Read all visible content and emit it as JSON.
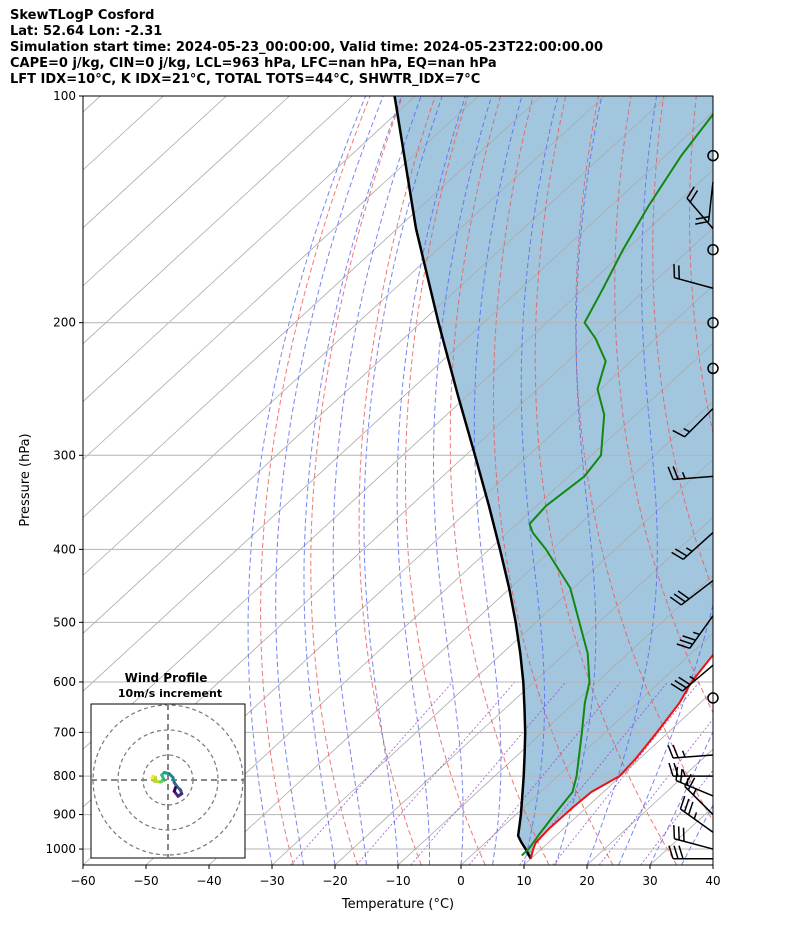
{
  "header": {
    "line1": "SkewTLogP Cosford",
    "line2": "Lat: 52.64   Lon: -2.31",
    "line3": "Simulation start time: 2024-05-23_00:00:00, Valid time: 2024-05-23T22:00:00.00",
    "line4": "CAPE=0 j/kg, CIN=0 j/kg, LCL=963 hPa, LFC=nan hPa, EQ=nan hPa",
    "line5": "LFT IDX=10°C, K IDX=21°C, TOTAL TOTS=44°C, SHWTR_IDX=7°C"
  },
  "colors": {
    "temperature": "#ee1111",
    "dewpoint": "#118811",
    "parcel": "#000000",
    "cape_fill": "#a3c6df",
    "dry_adiabat": "#ee5555",
    "moist_adiabat": "#5566ee",
    "mixing_ratio": "#9944cc",
    "isotherm": "#aaaaaa",
    "wind_barb": "#000000"
  },
  "chart_data": {
    "type": "skewt-logp",
    "xlabel": "Temperature (°C)",
    "ylabel": "Pressure (hPa)",
    "xlim": [
      -60,
      40
    ],
    "ylim": [
      1050,
      100
    ],
    "x_ticks": [
      -60,
      -50,
      -40,
      -30,
      -20,
      -10,
      0,
      10,
      20,
      30,
      40
    ],
    "x_tick_labels": [
      "−60",
      "−50",
      "−40",
      "−30",
      "−20",
      "−10",
      "0",
      "10",
      "20",
      "30",
      "40"
    ],
    "y_ticks": [
      100,
      200,
      300,
      400,
      500,
      600,
      700,
      800,
      900,
      1000
    ],
    "y_tick_labels": [
      "100",
      "200",
      "300",
      "400",
      "500",
      "600",
      "700",
      "800",
      "900",
      "1000"
    ],
    "grid": true,
    "skew_deg_per_decade": 130,
    "series": [
      {
        "type": "temperature",
        "points": [
          [
            1030,
            10.0
          ],
          [
            1000,
            8.7
          ],
          [
            980,
            8.0
          ],
          [
            940,
            7.7
          ],
          [
            880,
            7.8
          ],
          [
            840,
            8.1
          ],
          [
            800,
            9.8
          ],
          [
            760,
            9.4
          ],
          [
            700,
            8.2
          ],
          [
            640,
            6.7
          ],
          [
            600,
            5.0
          ],
          [
            540,
            3.4
          ],
          [
            500,
            1.7
          ],
          [
            450,
            -0.3
          ],
          [
            400,
            -3.8
          ],
          [
            350,
            -8.3
          ],
          [
            300,
            -12.3
          ],
          [
            290,
            -14.0
          ],
          [
            270,
            -14.3
          ],
          [
            250,
            -12.0
          ],
          [
            230,
            -8.5
          ],
          [
            210,
            -5.5
          ],
          [
            190,
            -3.0
          ],
          [
            170,
            -1.5
          ],
          [
            150,
            -2.0
          ],
          [
            130,
            -3.5
          ],
          [
            115,
            -6.5
          ],
          [
            100,
            -10.5
          ]
        ]
      },
      {
        "type": "dewpoint",
        "points": [
          [
            1020,
            8.0
          ],
          [
            1000,
            8.0
          ],
          [
            960,
            7.2
          ],
          [
            900,
            6.1
          ],
          [
            840,
            5.1
          ],
          [
            800,
            3.0
          ],
          [
            700,
            -3.7
          ],
          [
            640,
            -8.3
          ],
          [
            600,
            -11.2
          ],
          [
            550,
            -16.4
          ],
          [
            500,
            -23.1
          ],
          [
            450,
            -30.5
          ],
          [
            400,
            -41.0
          ],
          [
            380,
            -46.0
          ],
          [
            370,
            -48.0
          ],
          [
            350,
            -48.5
          ],
          [
            320,
            -47.5
          ],
          [
            300,
            -48.5
          ],
          [
            265,
            -55.0
          ],
          [
            245,
            -60.5
          ],
          [
            225,
            -64.0
          ],
          [
            210,
            -69.5
          ],
          [
            200,
            -74.0
          ],
          [
            180,
            -77.0
          ],
          [
            160,
            -80.5
          ],
          [
            140,
            -84.0
          ],
          [
            120,
            -87.5
          ],
          [
            100,
            -90.5
          ]
        ]
      },
      {
        "type": "parcel",
        "points": [
          [
            1030,
            10.0
          ],
          [
            1000,
            7.5
          ],
          [
            980,
            5.7
          ],
          [
            960,
            4.0
          ],
          [
            950,
            3.5
          ],
          [
            900,
            0.8
          ],
          [
            850,
            -2.2
          ],
          [
            800,
            -5.4
          ],
          [
            750,
            -8.9
          ],
          [
            700,
            -12.7
          ],
          [
            650,
            -17.0
          ],
          [
            600,
            -21.7
          ],
          [
            550,
            -27.1
          ],
          [
            500,
            -33.2
          ],
          [
            450,
            -40.2
          ],
          [
            400,
            -48.3
          ],
          [
            350,
            -57.6
          ],
          [
            300,
            -68.5
          ],
          [
            250,
            -81.5
          ],
          [
            200,
            -97.2
          ],
          [
            150,
            -117.0
          ],
          [
            100,
            -143.3
          ]
        ]
      }
    ],
    "wind_barbs": [
      {
        "pressure": 1030,
        "u": -15.0,
        "v": 0.0
      },
      {
        "pressure": 1000,
        "u": -15.0,
        "v": 4.0
      },
      {
        "pressure": 950,
        "u": -14.0,
        "v": 10.0
      },
      {
        "pressure": 900,
        "u": -10.0,
        "v": 10.0
      },
      {
        "pressure": 850,
        "u": -12.0,
        "v": 5.0
      },
      {
        "pressure": 800,
        "u": -12.0,
        "v": 0.0
      },
      {
        "pressure": 750,
        "u": -13.0,
        "v": -1.0
      },
      {
        "pressure": 630,
        "u": 0.0,
        "v": 0.0
      },
      {
        "pressure": 570,
        "u": -13.0,
        "v": -11.0
      },
      {
        "pressure": 490,
        "u": -10.0,
        "v": -14.0
      },
      {
        "pressure": 440,
        "u": -13.0,
        "v": -10.0
      },
      {
        "pressure": 380,
        "u": -10.0,
        "v": -9.0
      },
      {
        "pressure": 320,
        "u": -13.0,
        "v": -1.0
      },
      {
        "pressure": 260,
        "u": -6.0,
        "v": -6.0
      },
      {
        "pressure": 230,
        "u": 0.0,
        "v": 0.0
      },
      {
        "pressure": 200,
        "u": 0.0,
        "v": 0.0
      },
      {
        "pressure": 180,
        "u": -11.0,
        "v": 3.0
      },
      {
        "pressure": 160,
        "u": 0.0,
        "v": 0.0
      },
      {
        "pressure": 150,
        "u": -6.0,
        "v": 7.0
      },
      {
        "pressure": 130,
        "u": -1.0,
        "v": -9.0
      },
      {
        "pressure": 120,
        "u": 0.0,
        "v": 0.0
      }
    ],
    "inset": {
      "title": "Wind Profile",
      "subtitle": "10m/s increment",
      "type": "hodograph",
      "rings": 3,
      "points": [
        [
          -6.5,
          0.5
        ],
        [
          -6.0,
          1.5
        ],
        [
          -5.0,
          1.0
        ],
        [
          -5.5,
          -0.5
        ],
        [
          -3.0,
          -0.8
        ],
        [
          -1.5,
          0.0
        ],
        [
          -2.5,
          2.0
        ],
        [
          -1.5,
          3.0
        ],
        [
          0.5,
          2.5
        ],
        [
          2.0,
          1.0
        ],
        [
          2.5,
          -1.0
        ],
        [
          3.5,
          -2.5
        ],
        [
          5.0,
          -4.0
        ],
        [
          5.5,
          -5.5
        ],
        [
          4.0,
          -6.5
        ],
        [
          2.5,
          -4.5
        ],
        [
          3.0,
          -3.0
        ]
      ]
    }
  }
}
